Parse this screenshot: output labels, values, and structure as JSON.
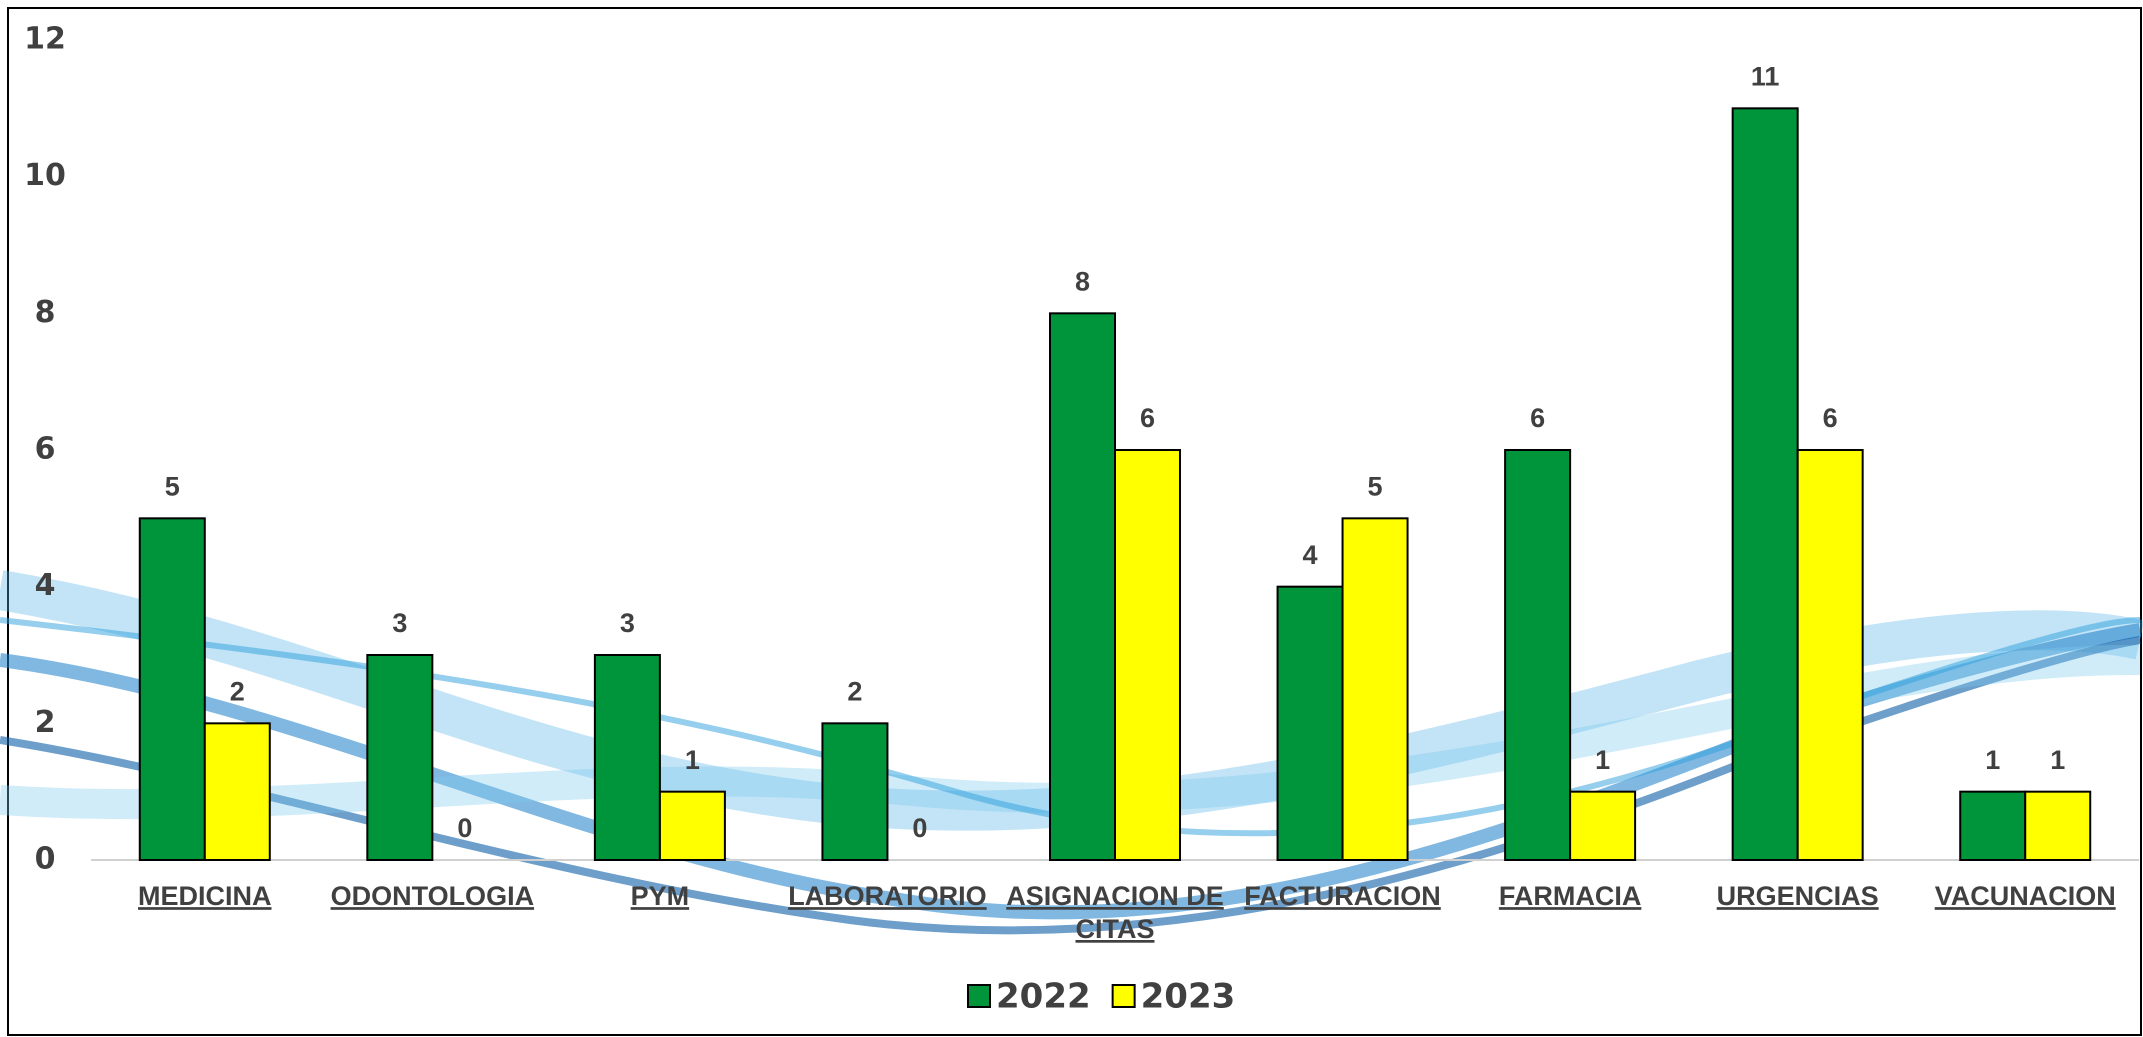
{
  "chart_data": {
    "type": "bar",
    "categories": [
      "MEDICINA",
      "ODONTOLOGIA",
      "PYM",
      "LABORATORIO",
      "ASIGNACION DE CITAS",
      "FACTURACION",
      "FARMACIA",
      "URGENCIAS",
      "VACUNACION"
    ],
    "series": [
      {
        "name": "2022",
        "color": "#00953a",
        "values": [
          5,
          3,
          3,
          2,
          8,
          4,
          6,
          11,
          1
        ]
      },
      {
        "name": "2023",
        "color": "#ffff00",
        "values": [
          2,
          0,
          1,
          0,
          6,
          5,
          1,
          6,
          1
        ]
      }
    ],
    "ylim": [
      0,
      12
    ],
    "yticks": [
      0,
      2,
      4,
      6,
      8,
      10,
      12
    ],
    "grid": false,
    "legend": "bottom"
  }
}
